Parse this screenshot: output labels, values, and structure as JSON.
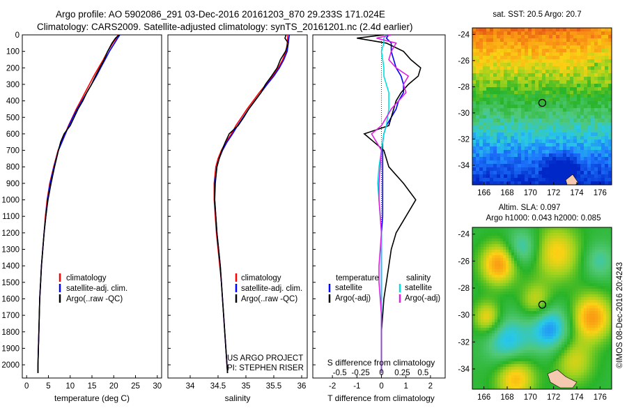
{
  "header": {
    "line1": "Argo profile: AO 5902086_291 03-Dec-2016 20161203_870 29.233S 171.024E",
    "line2": "Climatology: CARS2009. Satellite-adjusted climatology: synTS_20161201.nc (2.4d earlier)"
  },
  "colors": {
    "climatology": "#ff0000",
    "satellite": "#0000ff",
    "argo": "#000000",
    "satellite_sal": "#00e0e0",
    "argo_sal": "#e020e0"
  },
  "depth_axis": {
    "range": [
      2080,
      0
    ],
    "ticks": [
      0,
      100,
      200,
      300,
      400,
      500,
      600,
      700,
      800,
      900,
      1000,
      1100,
      1200,
      1300,
      1400,
      1500,
      1600,
      1700,
      1800,
      1900,
      2000
    ]
  },
  "chart_data": [
    {
      "type": "line",
      "id": "temperature",
      "xlabel": "temperature (deg C)",
      "ylim": [
        2080,
        0
      ],
      "xlim": [
        -1,
        31
      ],
      "xticks": [
        0,
        5,
        10,
        15,
        20,
        25,
        30
      ],
      "legend": [
        "climatology",
        "satellite-adj. clim.",
        "Argo(..raw -QC)"
      ],
      "legend_placement": "lower-center",
      "depth": [
        0,
        20,
        50,
        100,
        150,
        200,
        250,
        300,
        350,
        400,
        450,
        500,
        550,
        600,
        650,
        700,
        800,
        900,
        1000,
        1100,
        1200,
        1300,
        1400,
        1500,
        1600,
        1700,
        1800,
        1900,
        2000,
        2050
      ],
      "series": [
        {
          "name": "climatology",
          "values": [
            21.0,
            20.6,
            19.8,
            18.6,
            17.6,
            16.5,
            15.4,
            14.4,
            13.4,
            12.4,
            11.4,
            10.5,
            9.6,
            8.8,
            8.0,
            7.2,
            6.2,
            5.3,
            4.7,
            4.3,
            4.0,
            3.7,
            3.4,
            3.2,
            3.0,
            2.9,
            2.8,
            2.7,
            2.6,
            2.6
          ]
        },
        {
          "name": "satellite-adj. clim.",
          "values": [
            21.4,
            20.9,
            20.2,
            19.0,
            18.0,
            17.0,
            16.0,
            14.9,
            13.8,
            12.7,
            11.6,
            10.6,
            9.7,
            8.9,
            8.1,
            7.3,
            6.3,
            5.4,
            4.8,
            4.4,
            4.0,
            3.7,
            3.4,
            3.2,
            3.0,
            2.9,
            2.8,
            2.7,
            2.6,
            2.6
          ]
        },
        {
          "name": "Argo(..raw -QC)",
          "values": [
            21.2,
            20.4,
            19.6,
            18.6,
            17.8,
            16.8,
            15.8,
            14.9,
            13.8,
            12.9,
            11.8,
            10.9,
            10.0,
            8.6,
            7.8,
            7.3,
            6.4,
            5.6,
            4.9,
            4.4,
            4.0,
            3.7,
            3.4,
            3.2,
            3.0,
            2.9,
            2.8,
            2.7,
            2.6,
            2.6
          ]
        }
      ]
    },
    {
      "type": "line",
      "id": "salinity",
      "xlabel": "salinity",
      "ylim": [
        2080,
        0
      ],
      "xlim": [
        33.6,
        36.1
      ],
      "xticks": [
        34,
        34.5,
        35,
        35.5,
        36
      ],
      "legend": [
        "climatology",
        "satellite-adj. clim.",
        "Argo(..raw -QC)"
      ],
      "legend_placement": "lower-right",
      "annotation": [
        "US ARGO PROJECT",
        "PI: STEPHEN RISER"
      ],
      "depth": [
        0,
        20,
        50,
        100,
        150,
        200,
        250,
        300,
        350,
        400,
        450,
        500,
        550,
        600,
        650,
        700,
        750,
        800,
        900,
        1000,
        1100,
        1200,
        1300,
        1400,
        1500,
        1600,
        1700,
        1800,
        1900,
        2000,
        2050
      ],
      "series": [
        {
          "name": "climatology",
          "values": [
            35.75,
            35.75,
            35.74,
            35.72,
            35.66,
            35.58,
            35.48,
            35.36,
            35.24,
            35.13,
            35.02,
            34.92,
            34.82,
            34.74,
            34.64,
            34.56,
            34.5,
            34.46,
            34.43,
            34.43,
            34.45,
            34.47,
            34.5,
            34.53,
            34.56,
            34.58,
            34.6,
            34.62,
            34.64,
            34.66,
            34.67
          ]
        },
        {
          "name": "satellite-adj. clim.",
          "values": [
            35.78,
            35.77,
            35.76,
            35.74,
            35.68,
            35.6,
            35.5,
            35.38,
            35.27,
            35.16,
            35.05,
            34.95,
            34.85,
            34.76,
            34.66,
            34.58,
            34.52,
            34.48,
            34.44,
            34.44,
            34.46,
            34.48,
            34.51,
            34.54,
            34.56,
            34.58,
            34.6,
            34.62,
            34.64,
            34.66,
            34.67
          ]
        },
        {
          "name": "Argo(..raw -QC)",
          "values": [
            35.72,
            35.7,
            35.76,
            35.71,
            35.62,
            35.56,
            35.46,
            35.35,
            35.27,
            35.16,
            35.05,
            34.96,
            34.86,
            34.7,
            34.63,
            34.57,
            34.52,
            34.48,
            34.45,
            34.44,
            34.46,
            34.48,
            34.51,
            34.54,
            34.56,
            34.58,
            34.6,
            34.62,
            34.64,
            34.66,
            34.67
          ]
        }
      ]
    },
    {
      "type": "line",
      "id": "differences",
      "xlabel": "T difference from climatology",
      "xlabel_top": "S difference from climatology",
      "ylim": [
        2080,
        0
      ],
      "xlim": [
        -2.8,
        2.6
      ],
      "xticks": [
        -2,
        -1,
        0,
        1,
        2
      ],
      "xticklabels_s": [
        "-0.5",
        "-0.25",
        "0",
        "0.25",
        "0.5"
      ],
      "legend_temperature_title": "temperature",
      "legend_salinity_title": "salinity",
      "legend_temperature": [
        "satellite",
        "Argo(-adj)"
      ],
      "legend_salinity": [
        "satellite",
        "Argo(-adj)"
      ],
      "depth": [
        0,
        20,
        50,
        100,
        150,
        200,
        250,
        300,
        350,
        400,
        450,
        500,
        550,
        600,
        650,
        700,
        800,
        900,
        1000,
        1100,
        1200,
        1300,
        1400,
        1500,
        1600,
        1700,
        1800,
        1900,
        2000,
        2050
      ],
      "series": [
        {
          "name": "temperature satellite",
          "values": [
            0.3,
            0.2,
            0.4,
            0.4,
            0.5,
            0.6,
            0.8,
            0.9,
            0.9,
            0.7,
            0.6,
            0.4,
            0.2,
            0.1,
            0.05,
            0.05,
            0.05,
            0.05,
            0.05,
            0.05,
            0.0,
            0.0,
            0.0,
            0.0,
            0.0,
            0.0,
            0.0,
            0.0,
            0.0,
            0.0
          ]
        },
        {
          "name": "temperature Argo(-adj)",
          "values": [
            0.1,
            -1.0,
            0.2,
            0.9,
            1.2,
            1.6,
            1.5,
            1.1,
            0.8,
            0.6,
            0.5,
            0.4,
            0.3,
            -0.7,
            -0.3,
            0.1,
            0.3,
            0.9,
            1.4,
            1.0,
            0.6,
            0.4,
            0.3,
            0.2,
            0.1,
            0.05,
            0.0,
            0.0,
            0.0,
            0.0
          ]
        },
        {
          "name": "salinity satellite",
          "values": [
            0.2,
            0.1,
            0.1,
            0.0,
            0.05,
            0.1,
            0.1,
            0.2,
            0.3,
            0.3,
            0.3,
            0.25,
            0.2,
            0.1,
            0.05,
            0.0,
            -0.1,
            -0.15,
            -0.1,
            -0.05,
            0.0,
            0.0,
            0.0,
            0.0,
            0.0,
            0.0,
            0.0,
            0.0,
            0.0,
            0.0
          ]
        },
        {
          "name": "salinity Argo(-adj)",
          "values": [
            0.4,
            -0.2,
            0.6,
            0.4,
            0.3,
            0.6,
            1.1,
            0.9,
            1.0,
            0.7,
            0.4,
            0.2,
            0.0,
            -0.4,
            -0.2,
            0.0,
            -0.05,
            -0.1,
            -0.1,
            -0.05,
            0.0,
            -0.05,
            -0.1,
            -0.1,
            -0.05,
            0.0,
            0.0,
            0.0,
            0.0,
            0.0
          ]
        }
      ]
    },
    {
      "type": "heatmap",
      "id": "sst_map",
      "title": "sat. SST: 20.5 Argo: 20.7",
      "xlim": [
        165,
        177
      ],
      "ylim": [
        -35.5,
        -23.5
      ],
      "xticks": [
        166,
        168,
        170,
        172,
        174,
        176
      ],
      "yticks": [
        -24,
        -26,
        -28,
        -30,
        -32,
        -34
      ],
      "marker": [
        171.024,
        -29.233
      ]
    },
    {
      "type": "heatmap",
      "id": "sla_map",
      "title_lines": [
        "Altim. SLA: 0.097",
        "Argo h1000: 0.043 h2000: 0.085"
      ],
      "xlim": [
        165,
        177
      ],
      "ylim": [
        -35.5,
        -23.5
      ],
      "xticks": [
        166,
        168,
        170,
        172,
        174,
        176
      ],
      "yticks": [
        -24,
        -26,
        -28,
        -30,
        -32,
        -34
      ],
      "marker": [
        171.024,
        -29.233
      ]
    }
  ],
  "credit": "©IMOS 08-Dec-2016 20:4243"
}
